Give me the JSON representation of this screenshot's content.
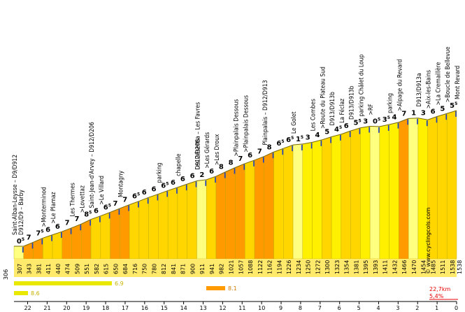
{
  "chart_data": {
    "type": "area",
    "title": "",
    "xlabel": "",
    "ylabel": "",
    "x_direction": "reversed",
    "xlim": [
      22.7,
      0
    ],
    "ylim": [
      280,
      1560
    ],
    "km_ticks": [
      "22",
      "21",
      "20",
      "19",
      "18",
      "17",
      "16",
      "15",
      "14",
      "13",
      "12",
      "11",
      "10",
      "9",
      "8",
      "7",
      "6",
      "5",
      "4",
      "3",
      "2",
      "1",
      "0"
    ],
    "start_altitude": "306",
    "end_altitude": "1538",
    "segments": [
      {
        "alt_label": "307",
        "grade": "0",
        "sup": "5"
      },
      {
        "alt_label": "343",
        "grade": "7",
        "sup": ""
      },
      {
        "alt_label": "381",
        "grade": "7",
        "sup": "5"
      },
      {
        "alt_label": "411",
        "grade": "6",
        "sup": ""
      },
      {
        "alt_label": "440",
        "grade": "6",
        "sup": ""
      },
      {
        "alt_label": "474",
        "grade": "7",
        "sup": ""
      },
      {
        "alt_label": "509",
        "grade": "7",
        "sup": ""
      },
      {
        "alt_label": "551",
        "grade": "8",
        "sup": "5"
      },
      {
        "alt_label": "582",
        "grade": "6",
        "sup": ""
      },
      {
        "alt_label": "615",
        "grade": "6",
        "sup": "5"
      },
      {
        "alt_label": "650",
        "grade": "7",
        "sup": ""
      },
      {
        "alt_label": "684",
        "grade": "7",
        "sup": ""
      },
      {
        "alt_label": "716",
        "grade": "6",
        "sup": "5"
      },
      {
        "alt_label": "750",
        "grade": "6",
        "sup": ""
      },
      {
        "alt_label": "780",
        "grade": "6",
        "sup": ""
      },
      {
        "alt_label": "812",
        "grade": "6",
        "sup": "5"
      },
      {
        "alt_label": "841",
        "grade": "6",
        "sup": ""
      },
      {
        "alt_label": "871",
        "grade": "6",
        "sup": ""
      },
      {
        "alt_label": "900",
        "grade": "6",
        "sup": ""
      },
      {
        "alt_label": "911",
        "grade": "2",
        "sup": ""
      },
      {
        "alt_label": "941",
        "grade": "6",
        "sup": ""
      },
      {
        "alt_label": "982",
        "grade": "8",
        "sup": ""
      },
      {
        "alt_label": "1021",
        "grade": "8",
        "sup": ""
      },
      {
        "alt_label": "1057",
        "grade": "7",
        "sup": ""
      },
      {
        "alt_label": "1088",
        "grade": "6",
        "sup": ""
      },
      {
        "alt_label": "1122",
        "grade": "7",
        "sup": ""
      },
      {
        "alt_label": "1162",
        "grade": "8",
        "sup": ""
      },
      {
        "alt_label": "1194",
        "grade": "6",
        "sup": "5"
      },
      {
        "alt_label": "1226",
        "grade": "6",
        "sup": "5"
      },
      {
        "alt_label": "1234",
        "grade": "1",
        "sup": "5"
      },
      {
        "alt_label": "1250",
        "grade": "3",
        "sup": ""
      },
      {
        "alt_label": "1272",
        "grade": "4",
        "sup": ""
      },
      {
        "alt_label": "1300",
        "grade": "5",
        "sup": ""
      },
      {
        "alt_label": "1323",
        "grade": "4",
        "sup": "5"
      },
      {
        "alt_label": "1354",
        "grade": "6",
        "sup": ""
      },
      {
        "alt_label": "1381",
        "grade": "5",
        "sup": "5"
      },
      {
        "alt_label": "1395",
        "grade": "3",
        "sup": ""
      },
      {
        "alt_label": "1393",
        "grade": "0",
        "sup": "5"
      },
      {
        "alt_label": "1411",
        "grade": "3",
        "sup": "5"
      },
      {
        "alt_label": "1432",
        "grade": "4",
        "sup": ""
      },
      {
        "alt_label": "1466",
        "grade": "7",
        "sup": ""
      },
      {
        "alt_label": "1470",
        "grade": "1",
        "sup": ""
      },
      {
        "alt_label": "1454",
        "grade": "3",
        "sup": ""
      },
      {
        "alt_label": "1485",
        "grade": "6",
        "sup": ""
      },
      {
        "alt_label": "1511",
        "grade": "5",
        "sup": ""
      },
      {
        "alt_label": "1538",
        "grade": "5",
        "sup": "5"
      }
    ],
    "places": [
      "Saint-Alban-Leysse – D9/D912",
      "D912/D9 – Barby",
      ">Monterminod",
      ">Le Plamaz",
      "Les Thermes",
      ">Lovettaz",
      "Saint-Jean-d'Arvey – D912/D206",
      ">Le Villard",
      "Montagny",
      "parking",
      "chapelle",
      "Les Déserts",
      "D912/D206a – Les Favres",
      ">Les Gérards",
      ">Les Droux",
      ">Plainpalais Dessous",
      ">Plainpalais Dessous",
      "Plainpalais – D912/D913",
      "Le Golet",
      "Les Combes",
      ">Route du Plateau Sud",
      "D913/D913b",
      "La Féclaz",
      "D913/D913b",
      "parking Châlet du Loup",
      ">RF",
      "parking",
      ">Alpage du Revard",
      "D913/D913a",
      ">Aix-les-Bains",
      ">La Cremaillère",
      ">Boucle de Bellevue",
      "Mont Revard"
    ],
    "summary_bars": [
      {
        "value": "8.6",
        "color": "#e8e800"
      },
      {
        "value": "6.9",
        "color": "#e8e800"
      },
      {
        "value": "8.1",
        "color": "#ff9a00"
      }
    ],
    "climb_distance": "22,7km",
    "climb_average": "5,4%",
    "watermark": "© www.cyclingcols.com"
  }
}
